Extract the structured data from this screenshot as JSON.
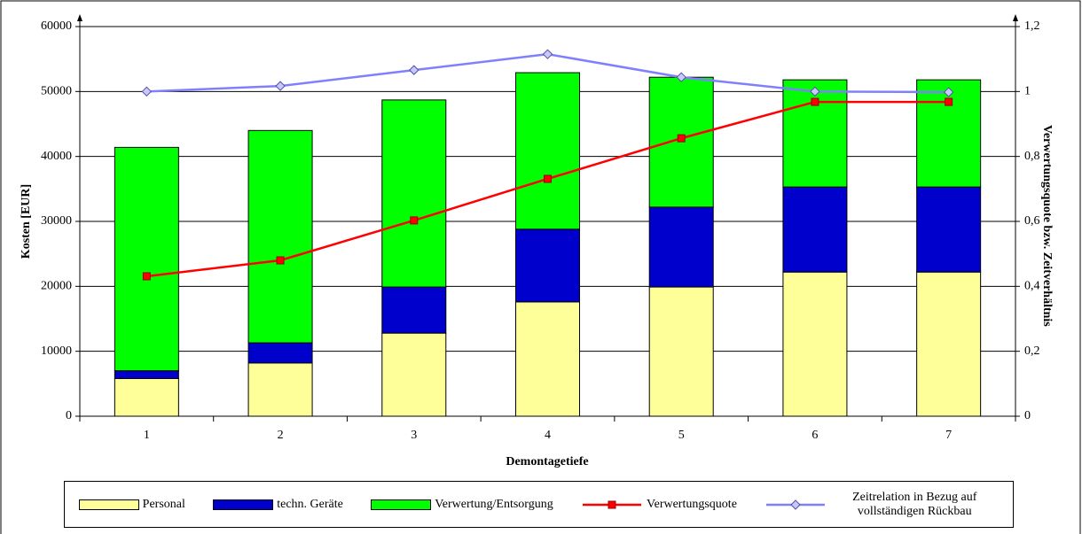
{
  "chart_data": {
    "type": "bar",
    "xlabel": "Demontagetiefe",
    "ylabel": "Kosten [EUR]",
    "y2label": "Verwertungsquote bzw. Zeitverhältnis",
    "categories": [
      "1",
      "2",
      "3",
      "4",
      "5",
      "6",
      "7"
    ],
    "stacked": true,
    "grid": true,
    "legend": "bottom",
    "ylim": [
      0,
      60000
    ],
    "yticks": [
      0,
      10000,
      20000,
      30000,
      40000,
      50000,
      60000
    ],
    "y2lim": [
      0,
      1.2
    ],
    "y2ticks": [
      0,
      {
        "value": 0.2,
        "label": "0,2"
      },
      {
        "value": 0.4,
        "label": "0,4"
      },
      {
        "value": 0.6,
        "label": "0,6"
      },
      {
        "value": 0.8,
        "label": "0,8"
      },
      1,
      {
        "value": 1.2,
        "label": "1,2"
      }
    ],
    "series": [
      {
        "name": "Personal",
        "type": "bar",
        "color": "#ffff99",
        "values": [
          5800,
          8200,
          12800,
          17600,
          19900,
          22200,
          22200
        ]
      },
      {
        "name": "techn. Geräte",
        "type": "bar",
        "color": "#0000cc",
        "values": [
          1200,
          3100,
          7100,
          11200,
          12300,
          13100,
          13100
        ]
      },
      {
        "name": "Verwertung/Entsorgung",
        "type": "bar",
        "color": "#00ff00",
        "values": [
          34400,
          32700,
          28800,
          24100,
          20000,
          16500,
          16500
        ]
      },
      {
        "name": "Verwertungsquote",
        "type": "line",
        "axis": "y2",
        "color": "#ff0000",
        "marker": "square",
        "values": [
          0.431,
          0.48,
          0.603,
          0.731,
          0.856,
          0.968,
          0.968
        ]
      },
      {
        "name": "Zeitrelation in Bezug auf vollständigen Rückbau",
        "type": "line",
        "axis": "y2",
        "color": "#8080ff",
        "marker": "diamond",
        "values": [
          1.0,
          1.017,
          1.066,
          1.115,
          1.044,
          1.0,
          0.998
        ]
      }
    ]
  }
}
